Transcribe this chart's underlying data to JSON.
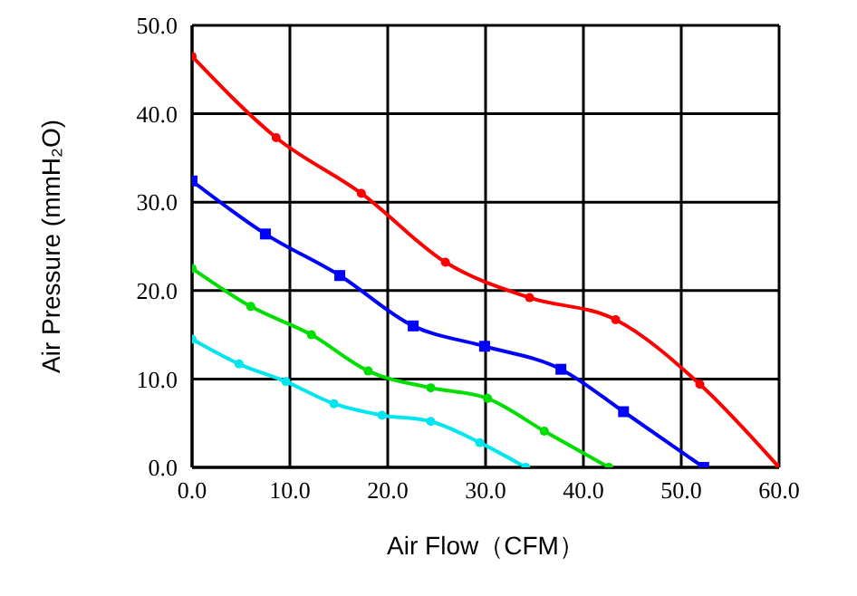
{
  "chart_data": {
    "type": "line",
    "xlabel": "Air Flow（CFM）",
    "ylabel": "Air Pressure (mmH₂O)",
    "xlim": [
      0,
      60
    ],
    "ylim": [
      0,
      50
    ],
    "xticks": [
      {
        "value": 0,
        "label": "0.0"
      },
      {
        "value": 10,
        "label": "10.0"
      },
      {
        "value": 20,
        "label": "20.0"
      },
      {
        "value": 30,
        "label": "30.0"
      },
      {
        "value": 40,
        "label": "40.0"
      },
      {
        "value": 50,
        "label": "50.0"
      },
      {
        "value": 60,
        "label": "60.0"
      }
    ],
    "yticks": [
      {
        "value": 0,
        "label": "0.0"
      },
      {
        "value": 10,
        "label": "10.0"
      },
      {
        "value": 20,
        "label": "20.0"
      },
      {
        "value": 30,
        "label": "30.0"
      },
      {
        "value": 40,
        "label": "40.0"
      },
      {
        "value": 50,
        "label": "50.0"
      }
    ],
    "grid": true,
    "series": [
      {
        "color": "#ff0000",
        "marker": "circle",
        "x": [
          0,
          8.6,
          17.3,
          25.9,
          34.5,
          43.3,
          51.9,
          60
        ],
        "values": [
          46.5,
          37.3,
          31.0,
          23.2,
          19.2,
          16.7,
          9.4,
          0
        ]
      },
      {
        "color": "#0000ff",
        "marker": "square",
        "x": [
          0,
          7.5,
          15.1,
          22.6,
          29.9,
          37.7,
          44.1,
          52.3
        ],
        "values": [
          32.4,
          26.4,
          21.7,
          16.0,
          13.7,
          11.1,
          6.3,
          0
        ]
      },
      {
        "color": "#00dd00",
        "marker": "circle",
        "x": [
          0,
          6.0,
          12.2,
          18.0,
          24.4,
          30.2,
          36.0,
          42.6
        ],
        "values": [
          22.5,
          18.2,
          15.0,
          10.9,
          9.0,
          7.8,
          4.1,
          0
        ]
      },
      {
        "color": "#00e5ee",
        "marker": "circle",
        "x": [
          0,
          4.8,
          9.6,
          14.5,
          19.4,
          24.4,
          29.4,
          34.1
        ],
        "values": [
          14.5,
          11.7,
          9.7,
          7.2,
          5.9,
          5.2,
          2.8,
          0
        ]
      }
    ]
  }
}
